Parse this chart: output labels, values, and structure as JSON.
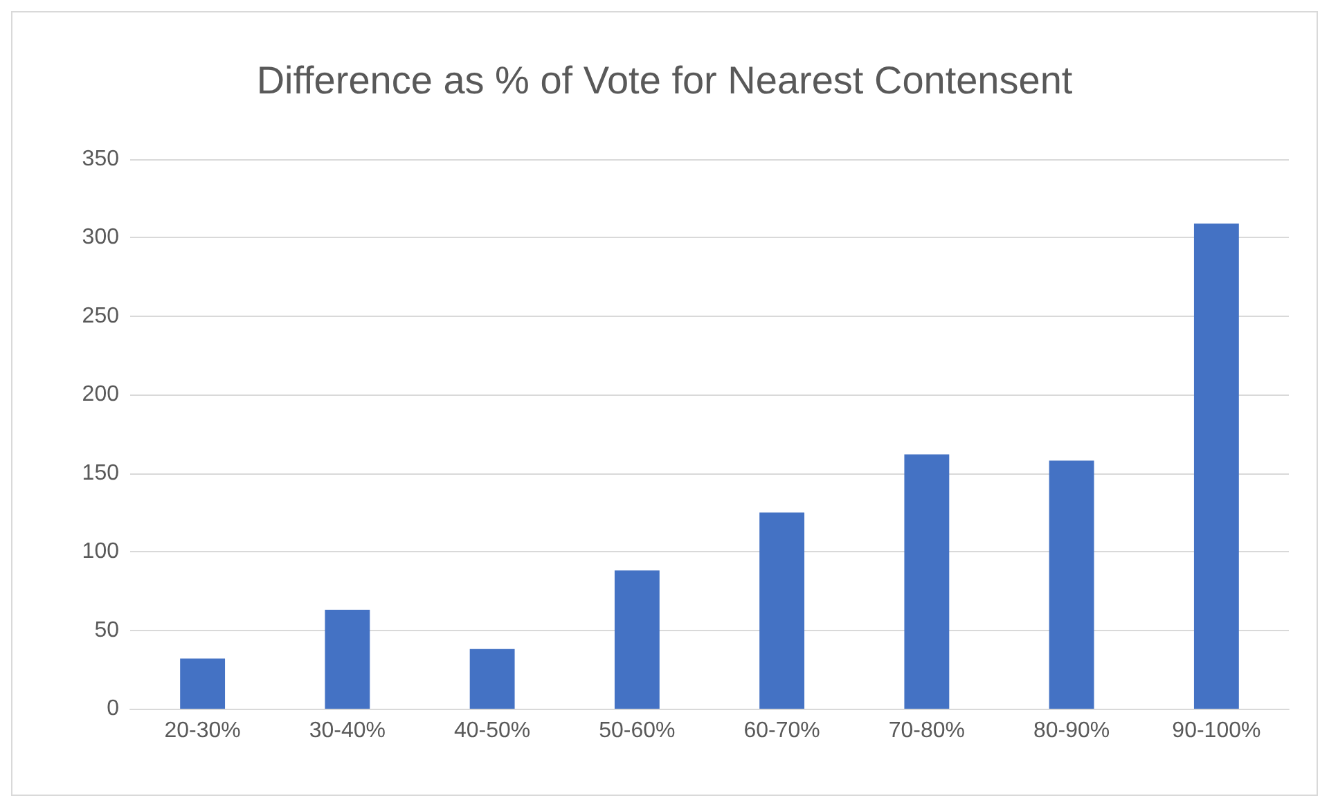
{
  "chart_data": {
    "type": "bar",
    "title": "Difference as % of Vote for Nearest Contensent",
    "categories": [
      "20-30%",
      "30-40%",
      "40-50%",
      "50-60%",
      "60-70%",
      "70-80%",
      "80-90%",
      "90-100%"
    ],
    "values": [
      32,
      63,
      38,
      88,
      125,
      162,
      158,
      309
    ],
    "color": "#4472c4",
    "ylim": [
      0,
      350
    ],
    "yticks": [
      0,
      50,
      100,
      150,
      200,
      250,
      300,
      350
    ],
    "grid": "y"
  }
}
